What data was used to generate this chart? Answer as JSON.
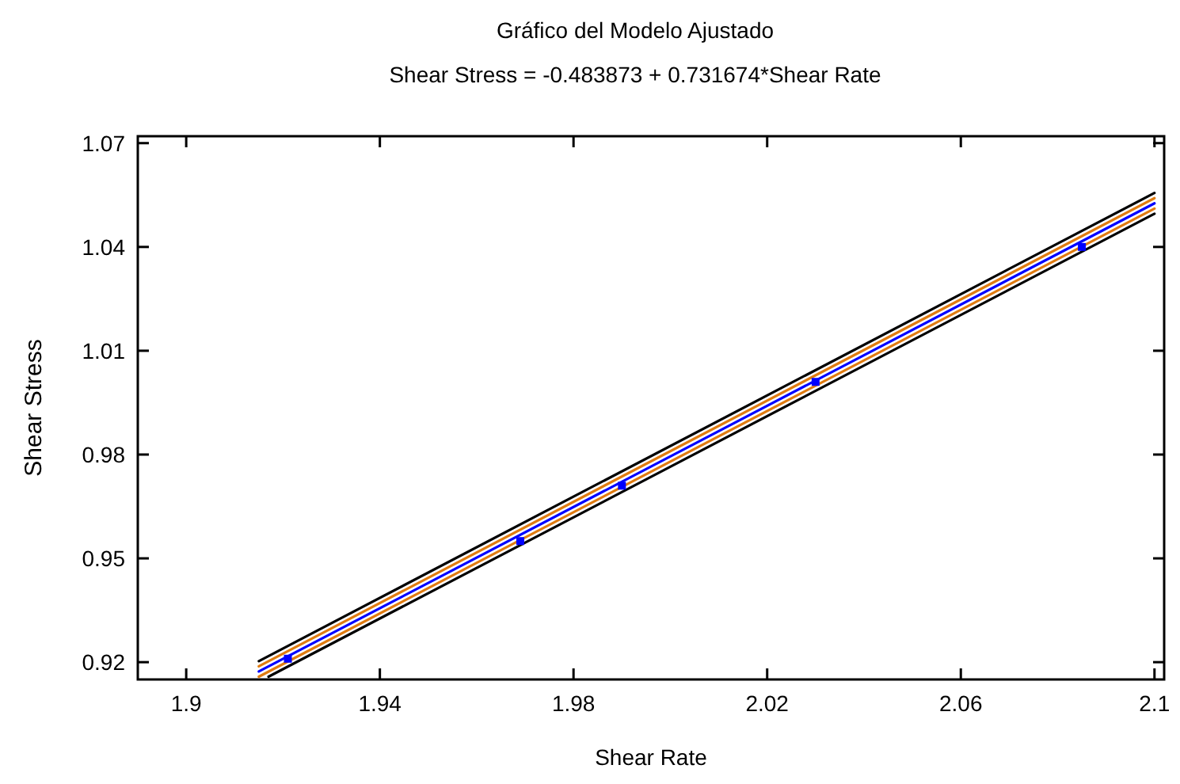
{
  "chart_data": {
    "type": "line",
    "title": "Gráfico del Modelo Ajustado",
    "subtitle": "Shear Stress = -0.483873 + 0.731674*Shear Rate",
    "xlabel": "Shear Rate",
    "ylabel": "Shear Stress",
    "xlim": [
      1.89,
      2.102
    ],
    "ylim": [
      0.915,
      1.072
    ],
    "xticks": [
      1.9,
      1.94,
      1.98,
      2.02,
      2.06,
      2.1
    ],
    "yticks": [
      0.92,
      0.95,
      0.98,
      1.01,
      1.04,
      1.07
    ],
    "grid": false,
    "line_style": "solid",
    "marker": "none",
    "series": [
      {
        "color": "#000000",
        "x": [
          1.917,
          2.1
        ],
        "values": [
          0.9158,
          1.0496
        ]
      },
      {
        "color": "#000000",
        "x": [
          1.915,
          2.1
        ],
        "values": [
          0.9203,
          1.0556
        ]
      },
      {
        "color": "#e07b10",
        "x": [
          1.915,
          2.1
        ],
        "values": [
          0.9158,
          1.0511
        ]
      },
      {
        "color": "#e07b10",
        "x": [
          1.915,
          2.1
        ],
        "values": [
          0.9188,
          1.0541
        ]
      },
      {
        "color": "#0000ff",
        "x": [
          1.915,
          2.1
        ],
        "values": [
          0.9173,
          1.0526
        ]
      },
      {
        "type": "scatter",
        "marker": "square",
        "color": "#0000ff",
        "x": [
          1.921,
          1.969,
          1.99,
          2.03,
          2.085
        ],
        "values": [
          0.921,
          0.955,
          0.971,
          1.001,
          1.04
        ]
      }
    ]
  }
}
